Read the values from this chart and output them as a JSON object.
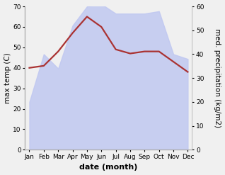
{
  "months": [
    "Jan",
    "Feb",
    "Mar",
    "Apr",
    "May",
    "Jun",
    "Jul",
    "Aug",
    "Sep",
    "Oct",
    "Nov",
    "Dec"
  ],
  "x": [
    0,
    1,
    2,
    3,
    4,
    5,
    6,
    7,
    8,
    9,
    10,
    11
  ],
  "temp": [
    40,
    41,
    48,
    57,
    65,
    60,
    49,
    47,
    48,
    48,
    43,
    38
  ],
  "precip": [
    20,
    40,
    34,
    52,
    60,
    61,
    57,
    57,
    57,
    58,
    40,
    38
  ],
  "temp_color": "#aa3333",
  "precip_fill_color": "#c0c8f0",
  "precip_line_color": "#9aaad8",
  "ylim_left": [
    0,
    70
  ],
  "ylim_right": [
    0,
    60
  ],
  "ylabel_left": "max temp (C)",
  "ylabel_right": "med. precipitation (kg/m2)",
  "xlabel": "date (month)",
  "bg_color": "#f0f0f0",
  "label_fontsize": 7.5,
  "tick_fontsize": 6.5,
  "xlabel_fontsize": 8,
  "temp_linewidth": 1.6,
  "precip_alpha": 0.85
}
